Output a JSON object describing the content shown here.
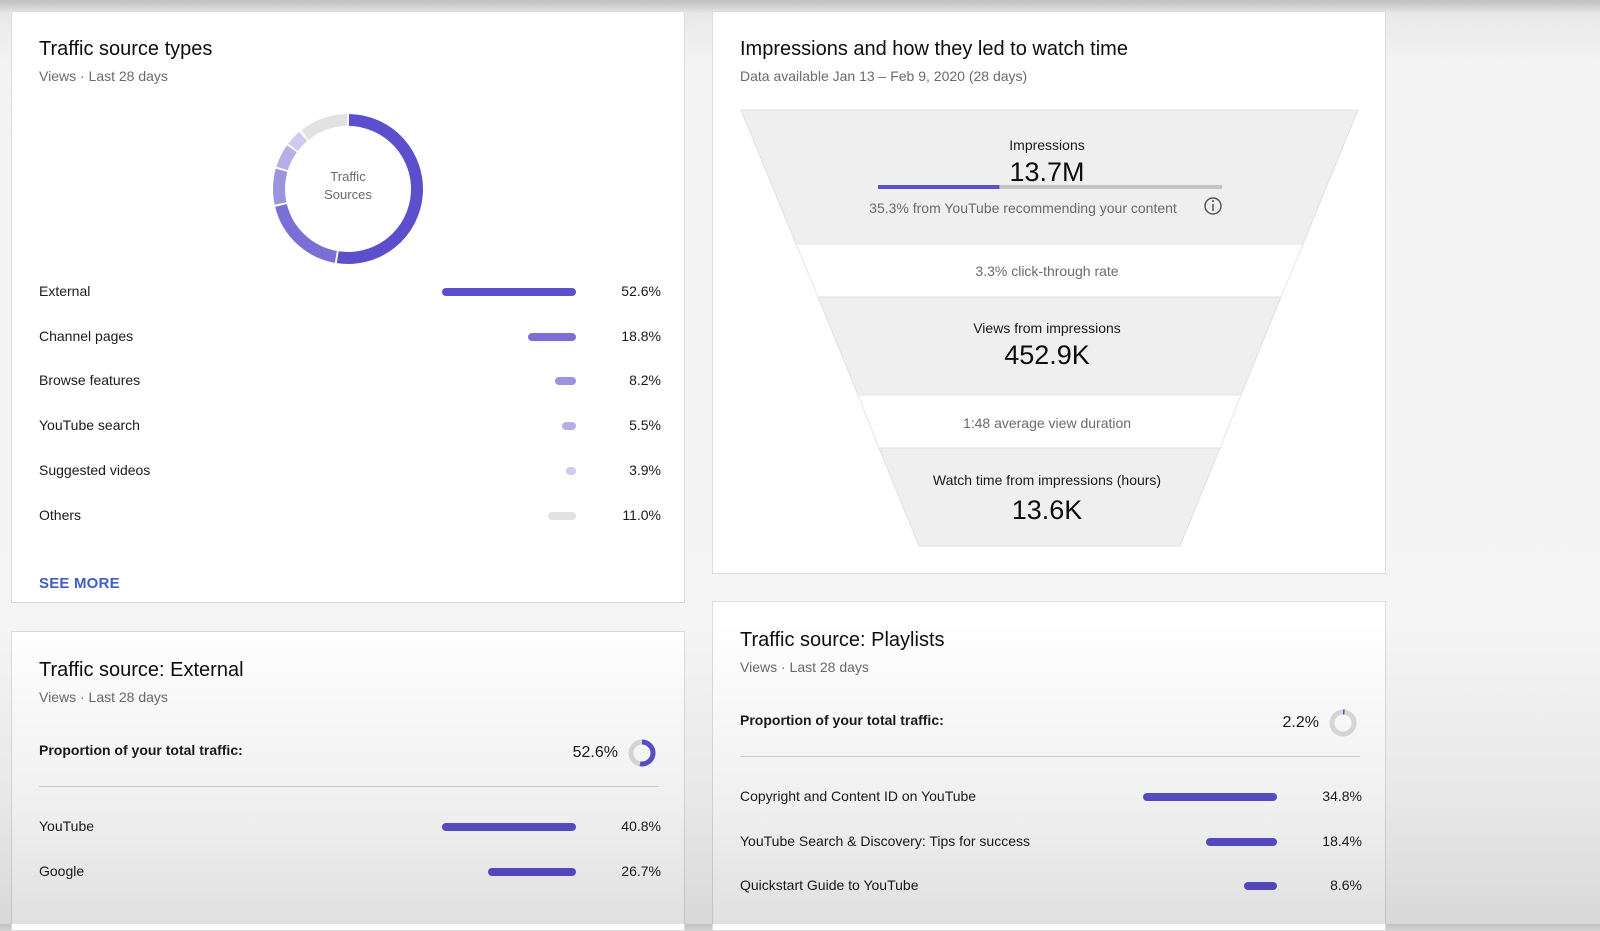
{
  "colors": {
    "primary": "#5b4fcc",
    "secondary": "#7a6fd6",
    "tertiary": "#9d94e0",
    "light": "#b6afe7",
    "lighter": "#cfcaf0",
    "other": "#e2e2e2",
    "link": "#3e5fbf"
  },
  "traffic_types": {
    "title": "Traffic source types",
    "subtitle": "Views · Last 28 days",
    "donut_center": [
      "Traffic",
      "Sources"
    ],
    "rows": [
      {
        "label": "External",
        "pct": "52.6%",
        "value": 52.6,
        "color": "#5b4fcc"
      },
      {
        "label": "Channel pages",
        "pct": "18.8%",
        "value": 18.8,
        "color": "#7a6fd6"
      },
      {
        "label": "Browse features",
        "pct": "8.2%",
        "value": 8.2,
        "color": "#9d94e0"
      },
      {
        "label": "YouTube search",
        "pct": "5.5%",
        "value": 5.5,
        "color": "#b6afe7"
      },
      {
        "label": "Suggested videos",
        "pct": "3.9%",
        "value": 3.9,
        "color": "#cfcaf0"
      },
      {
        "label": "Others",
        "pct": "11.0%",
        "value": 11.0,
        "color": "#e2e2e2"
      }
    ],
    "see_more": "SEE MORE"
  },
  "impressions": {
    "title": "Impressions and how they led to watch time",
    "subtitle": "Data available Jan 13 – Feb 9, 2020 (28 days)",
    "impressions_label": "Impressions",
    "impressions_value": "13.7M",
    "recommend_fraction": 0.353,
    "recommend_note": "35.3% from YouTube recommending your content",
    "ctr_note": "3.3% click-through rate",
    "views_label": "Views from impressions",
    "views_value": "452.9K",
    "avg_duration_note": "1:48 average view duration",
    "watch_label": "Watch time from impressions (hours)",
    "watch_value": "13.6K"
  },
  "external": {
    "title": "Traffic source: External",
    "subtitle": "Views · Last 28 days",
    "proportion_label": "Proportion of your total traffic:",
    "proportion_value": "52.6%",
    "proportion": 0.526,
    "rows": [
      {
        "label": "YouTube",
        "pct": "40.8%",
        "value": 40.8
      },
      {
        "label": "Google",
        "pct": "26.7%",
        "value": 26.7
      }
    ]
  },
  "playlists": {
    "title": "Traffic source: Playlists",
    "subtitle": "Views · Last 28 days",
    "proportion_label": "Proportion of your total traffic:",
    "proportion_value": "2.2%",
    "proportion": 0.022,
    "rows": [
      {
        "label": "Copyright and Content ID on YouTube",
        "pct": "34.8%",
        "value": 34.8
      },
      {
        "label": "YouTube Search & Discovery: Tips for success",
        "pct": "18.4%",
        "value": 18.4
      },
      {
        "label": "Quickstart Guide to YouTube",
        "pct": "8.6%",
        "value": 8.6
      }
    ]
  }
}
